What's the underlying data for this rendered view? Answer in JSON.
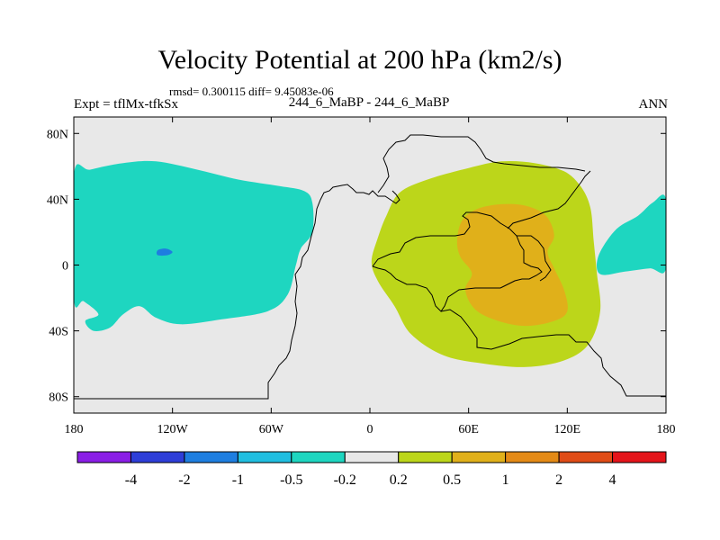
{
  "chart_data": {
    "type": "contour-map",
    "title": "Velocity Potential at 200 hPa (km2/s)",
    "stats": "rmsd= 0.300115 diff= 9.45083e-06",
    "experiment": "Expt = tflMx-tfkSx",
    "case": "244_6_MaBP - 244_6_MaBP",
    "season": "ANN",
    "xlim": [
      -180,
      180
    ],
    "ylim": [
      -90,
      90
    ],
    "x_ticks": [
      {
        "value": -180,
        "label": "180"
      },
      {
        "value": -120,
        "label": "120W"
      },
      {
        "value": -60,
        "label": "60W"
      },
      {
        "value": 0,
        "label": "0"
      },
      {
        "value": 60,
        "label": "60E"
      },
      {
        "value": 120,
        "label": "120E"
      },
      {
        "value": 180,
        "label": "180"
      }
    ],
    "y_ticks": [
      {
        "value": 80,
        "label": "80N"
      },
      {
        "value": 40,
        "label": "40N"
      },
      {
        "value": 0,
        "label": "0"
      },
      {
        "value": -40,
        "label": "40S"
      },
      {
        "value": -80,
        "label": "80S"
      }
    ],
    "colorbar": {
      "colors": [
        "#8a1ee6",
        "#2e3ed8",
        "#1e7ee0",
        "#20bee0",
        "#1ed6c0",
        "#e8e8e8",
        "#bcd61a",
        "#e0b01a",
        "#e48a16",
        "#e04c16",
        "#e4141a"
      ],
      "labels": [
        "-4",
        "-2",
        "-1",
        "-0.5",
        "-0.2",
        "0.2",
        "0.5",
        "1",
        "2",
        "4"
      ]
    },
    "field_regions": [
      {
        "name": "negative-anomaly-west",
        "level": "-0.5 to -0.2",
        "color": "#1ed6c0",
        "outline": [
          [
            -180,
            55
          ],
          [
            -170,
            58
          ],
          [
            -150,
            62
          ],
          [
            -130,
            63
          ],
          [
            -105,
            58
          ],
          [
            -80,
            52
          ],
          [
            -55,
            48
          ],
          [
            -40,
            45
          ],
          [
            -35,
            38
          ],
          [
            -35,
            20
          ],
          [
            -42,
            10
          ],
          [
            -45,
            0
          ],
          [
            -50,
            -18
          ],
          [
            -62,
            -28
          ],
          [
            -90,
            -33
          ],
          [
            -115,
            -36
          ],
          [
            -130,
            -32
          ],
          [
            -140,
            -25
          ],
          [
            -150,
            -30
          ],
          [
            -158,
            -38
          ],
          [
            -168,
            -40
          ],
          [
            -173,
            -34
          ],
          [
            -165,
            -30
          ],
          [
            -174,
            -22
          ],
          [
            -180,
            -20
          ]
        ]
      },
      {
        "name": "negative-core-west",
        "level": "-1 to -0.5",
        "color": "#1e7ee0",
        "outline": [
          [
            -129,
            9
          ],
          [
            -124,
            10
          ],
          [
            -120,
            8
          ],
          [
            -123,
            6
          ],
          [
            -129,
            6
          ]
        ]
      },
      {
        "name": "negative-anomaly-east",
        "level": "-0.5 to -0.2",
        "color": "#1ed6c0",
        "outline": [
          [
            180,
            40
          ],
          [
            172,
            38
          ],
          [
            163,
            30
          ],
          [
            150,
            22
          ],
          [
            140,
            8
          ],
          [
            138,
            -2
          ],
          [
            142,
            -6
          ],
          [
            155,
            -4
          ],
          [
            170,
            -2
          ],
          [
            180,
            -2
          ]
        ]
      },
      {
        "name": "positive-anomaly",
        "level": "0.2 to 0.5",
        "color": "#bcd61a",
        "outline": [
          [
            18,
            44
          ],
          [
            35,
            52
          ],
          [
            60,
            59
          ],
          [
            80,
            63
          ],
          [
            100,
            62
          ],
          [
            118,
            57
          ],
          [
            128,
            48
          ],
          [
            134,
            35
          ],
          [
            136,
            15
          ],
          [
            138,
            -5
          ],
          [
            140,
            -28
          ],
          [
            133,
            -48
          ],
          [
            118,
            -58
          ],
          [
            95,
            -62
          ],
          [
            70,
            -60
          ],
          [
            45,
            -55
          ],
          [
            25,
            -42
          ],
          [
            15,
            -25
          ],
          [
            5,
            -10
          ],
          [
            1,
            2
          ],
          [
            5,
            17
          ],
          [
            10,
            30
          ]
        ]
      },
      {
        "name": "positive-core",
        "level": "0.5 to 1",
        "color": "#e0b01a",
        "outline": [
          [
            56,
            27
          ],
          [
            65,
            34
          ],
          [
            80,
            37
          ],
          [
            95,
            36
          ],
          [
            107,
            30
          ],
          [
            112,
            18
          ],
          [
            108,
            8
          ],
          [
            112,
            -2
          ],
          [
            118,
            -15
          ],
          [
            120,
            -28
          ],
          [
            112,
            -34
          ],
          [
            95,
            -37
          ],
          [
            78,
            -34
          ],
          [
            64,
            -27
          ],
          [
            58,
            -15
          ],
          [
            62,
            -5
          ],
          [
            55,
            5
          ],
          [
            53,
            15
          ]
        ]
      }
    ]
  }
}
